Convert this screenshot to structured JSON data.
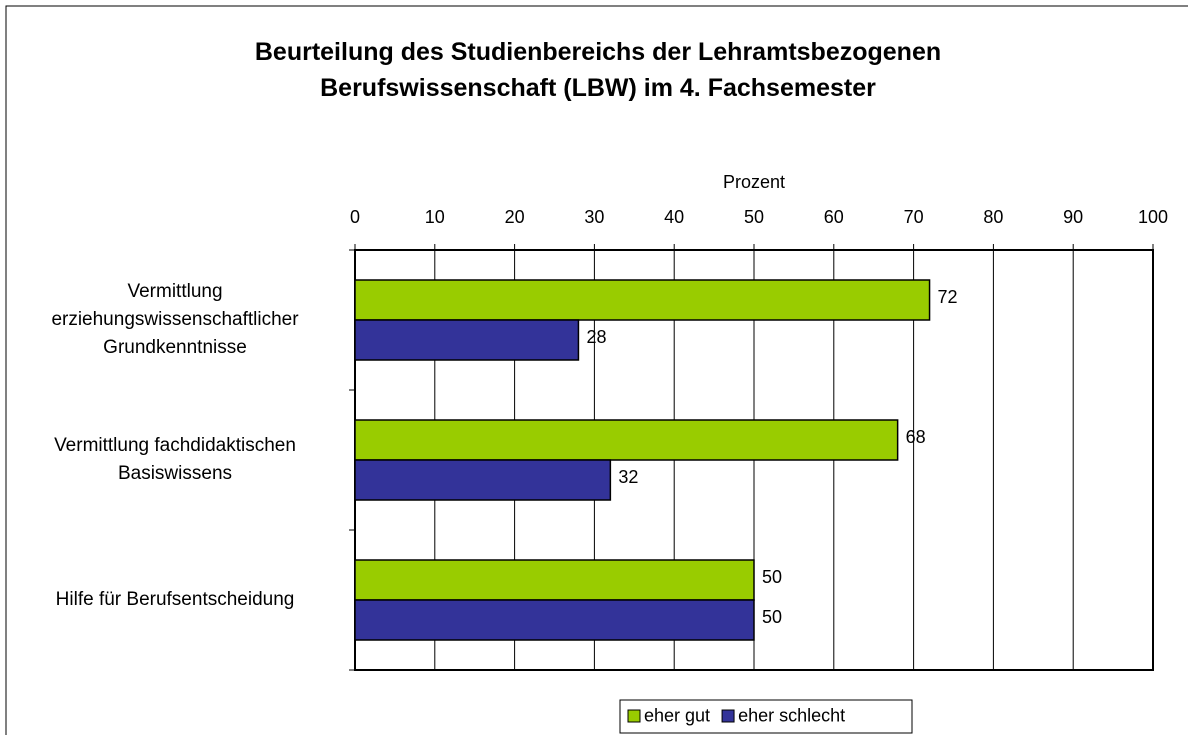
{
  "chart_data": {
    "type": "bar",
    "orientation": "horizontal",
    "title": "Beurteilung des Studienbereichs der Lehramtsbezogenen Berufswissenschaft (LBW) im 4. Fachsemester",
    "x_label": "Prozent",
    "categories": [
      "Vermittlung erziehungswissenschaftlicher Grundkenntnisse",
      "Vermittlung fachdidaktischen Basiswissens",
      "Hilfe für Berufsentscheidung"
    ],
    "series": [
      {
        "name": "eher gut",
        "color": "#99cc00",
        "values": [
          72,
          68,
          50
        ]
      },
      {
        "name": "eher schlecht",
        "color": "#333399",
        "values": [
          28,
          32,
          50
        ]
      }
    ],
    "xlim": [
      0,
      100
    ],
    "xticks": [
      0,
      10,
      20,
      30,
      40,
      50,
      60,
      70,
      80,
      90,
      100
    ],
    "grid": true,
    "legend": "bottom"
  }
}
